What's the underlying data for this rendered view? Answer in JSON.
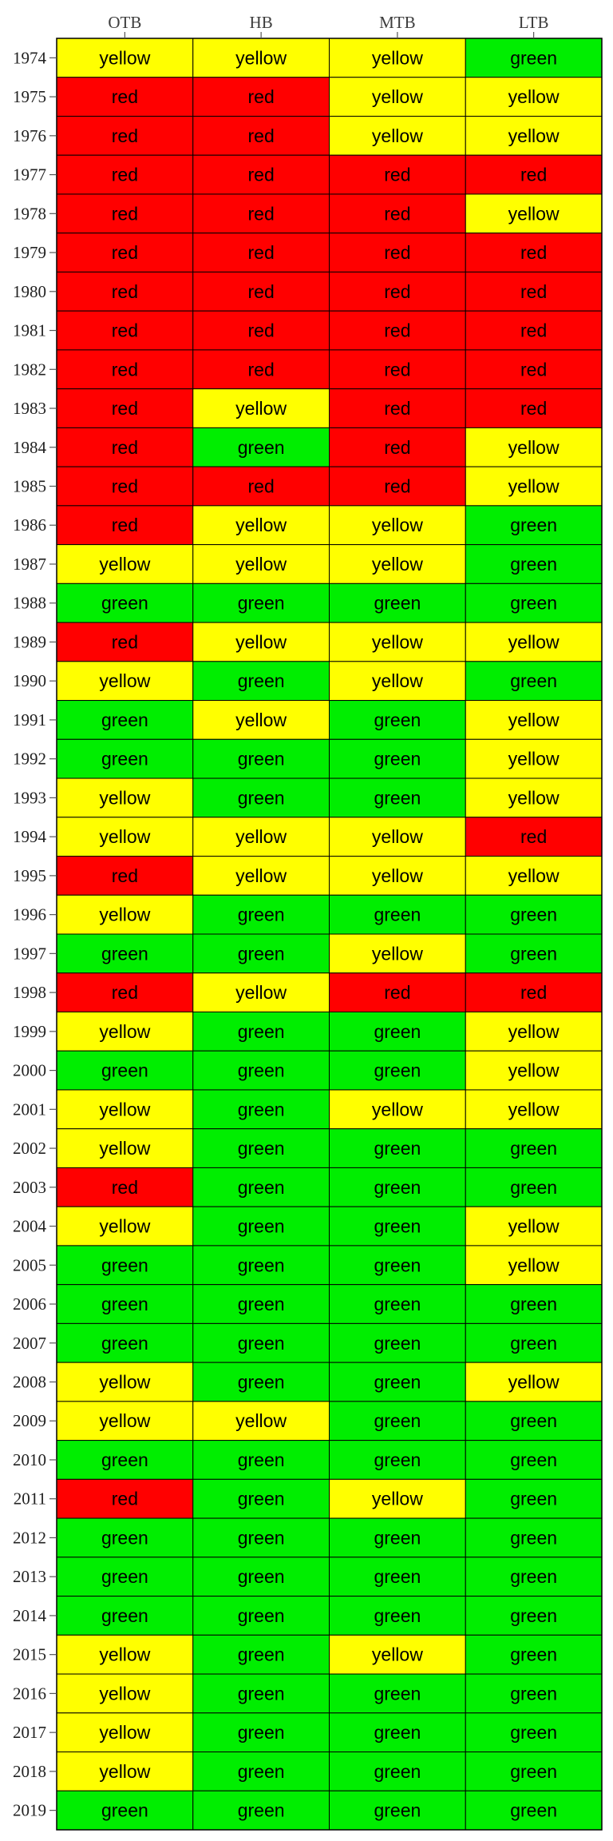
{
  "chart_data": {
    "type": "heatmap",
    "title": "",
    "xlabel": "",
    "ylabel": "",
    "columns": [
      "OTB",
      "HB",
      "MTB",
      "LTB"
    ],
    "rows": [
      {
        "year": "1974",
        "values": [
          "yellow",
          "yellow",
          "yellow",
          "green"
        ]
      },
      {
        "year": "1975",
        "values": [
          "red",
          "red",
          "yellow",
          "yellow"
        ]
      },
      {
        "year": "1976",
        "values": [
          "red",
          "red",
          "yellow",
          "yellow"
        ]
      },
      {
        "year": "1977",
        "values": [
          "red",
          "red",
          "red",
          "red"
        ]
      },
      {
        "year": "1978",
        "values": [
          "red",
          "red",
          "red",
          "yellow"
        ]
      },
      {
        "year": "1979",
        "values": [
          "red",
          "red",
          "red",
          "red"
        ]
      },
      {
        "year": "1980",
        "values": [
          "red",
          "red",
          "red",
          "red"
        ]
      },
      {
        "year": "1981",
        "values": [
          "red",
          "red",
          "red",
          "red"
        ]
      },
      {
        "year": "1982",
        "values": [
          "red",
          "red",
          "red",
          "red"
        ]
      },
      {
        "year": "1983",
        "values": [
          "red",
          "yellow",
          "red",
          "red"
        ]
      },
      {
        "year": "1984",
        "values": [
          "red",
          "green",
          "red",
          "yellow"
        ]
      },
      {
        "year": "1985",
        "values": [
          "red",
          "red",
          "red",
          "yellow"
        ]
      },
      {
        "year": "1986",
        "values": [
          "red",
          "yellow",
          "yellow",
          "green"
        ]
      },
      {
        "year": "1987",
        "values": [
          "yellow",
          "yellow",
          "yellow",
          "green"
        ]
      },
      {
        "year": "1988",
        "values": [
          "green",
          "green",
          "green",
          "green"
        ]
      },
      {
        "year": "1989",
        "values": [
          "red",
          "yellow",
          "yellow",
          "yellow"
        ]
      },
      {
        "year": "1990",
        "values": [
          "yellow",
          "green",
          "yellow",
          "green"
        ]
      },
      {
        "year": "1991",
        "values": [
          "green",
          "yellow",
          "green",
          "yellow"
        ]
      },
      {
        "year": "1992",
        "values": [
          "green",
          "green",
          "green",
          "yellow"
        ]
      },
      {
        "year": "1993",
        "values": [
          "yellow",
          "green",
          "green",
          "yellow"
        ]
      },
      {
        "year": "1994",
        "values": [
          "yellow",
          "yellow",
          "yellow",
          "red"
        ]
      },
      {
        "year": "1995",
        "values": [
          "red",
          "yellow",
          "yellow",
          "yellow"
        ]
      },
      {
        "year": "1996",
        "values": [
          "yellow",
          "green",
          "green",
          "green"
        ]
      },
      {
        "year": "1997",
        "values": [
          "green",
          "green",
          "yellow",
          "green"
        ]
      },
      {
        "year": "1998",
        "values": [
          "red",
          "yellow",
          "red",
          "red"
        ]
      },
      {
        "year": "1999",
        "values": [
          "yellow",
          "green",
          "green",
          "yellow"
        ]
      },
      {
        "year": "2000",
        "values": [
          "green",
          "green",
          "green",
          "yellow"
        ]
      },
      {
        "year": "2001",
        "values": [
          "yellow",
          "green",
          "yellow",
          "yellow"
        ]
      },
      {
        "year": "2002",
        "values": [
          "yellow",
          "green",
          "green",
          "green"
        ]
      },
      {
        "year": "2003",
        "values": [
          "red",
          "green",
          "green",
          "green"
        ]
      },
      {
        "year": "2004",
        "values": [
          "yellow",
          "green",
          "green",
          "yellow"
        ]
      },
      {
        "year": "2005",
        "values": [
          "green",
          "green",
          "green",
          "yellow"
        ]
      },
      {
        "year": "2006",
        "values": [
          "green",
          "green",
          "green",
          "green"
        ]
      },
      {
        "year": "2007",
        "values": [
          "green",
          "green",
          "green",
          "green"
        ]
      },
      {
        "year": "2008",
        "values": [
          "yellow",
          "green",
          "green",
          "yellow"
        ]
      },
      {
        "year": "2009",
        "values": [
          "yellow",
          "yellow",
          "green",
          "green"
        ]
      },
      {
        "year": "2010",
        "values": [
          "green",
          "green",
          "green",
          "green"
        ]
      },
      {
        "year": "2011",
        "values": [
          "red",
          "green",
          "yellow",
          "green"
        ]
      },
      {
        "year": "2012",
        "values": [
          "green",
          "green",
          "green",
          "green"
        ]
      },
      {
        "year": "2013",
        "values": [
          "green",
          "green",
          "green",
          "green"
        ]
      },
      {
        "year": "2014",
        "values": [
          "green",
          "green",
          "green",
          "green"
        ]
      },
      {
        "year": "2015",
        "values": [
          "yellow",
          "green",
          "yellow",
          "green"
        ]
      },
      {
        "year": "2016",
        "values": [
          "yellow",
          "green",
          "green",
          "green"
        ]
      },
      {
        "year": "2017",
        "values": [
          "yellow",
          "green",
          "green",
          "green"
        ]
      },
      {
        "year": "2018",
        "values": [
          "yellow",
          "green",
          "green",
          "green"
        ]
      },
      {
        "year": "2019",
        "values": [
          "green",
          "green",
          "green",
          "green"
        ]
      }
    ],
    "colors": {
      "red": "#ff0000",
      "yellow": "#ffff00",
      "green": "#00ee00"
    },
    "grid": true,
    "legend": "none"
  }
}
